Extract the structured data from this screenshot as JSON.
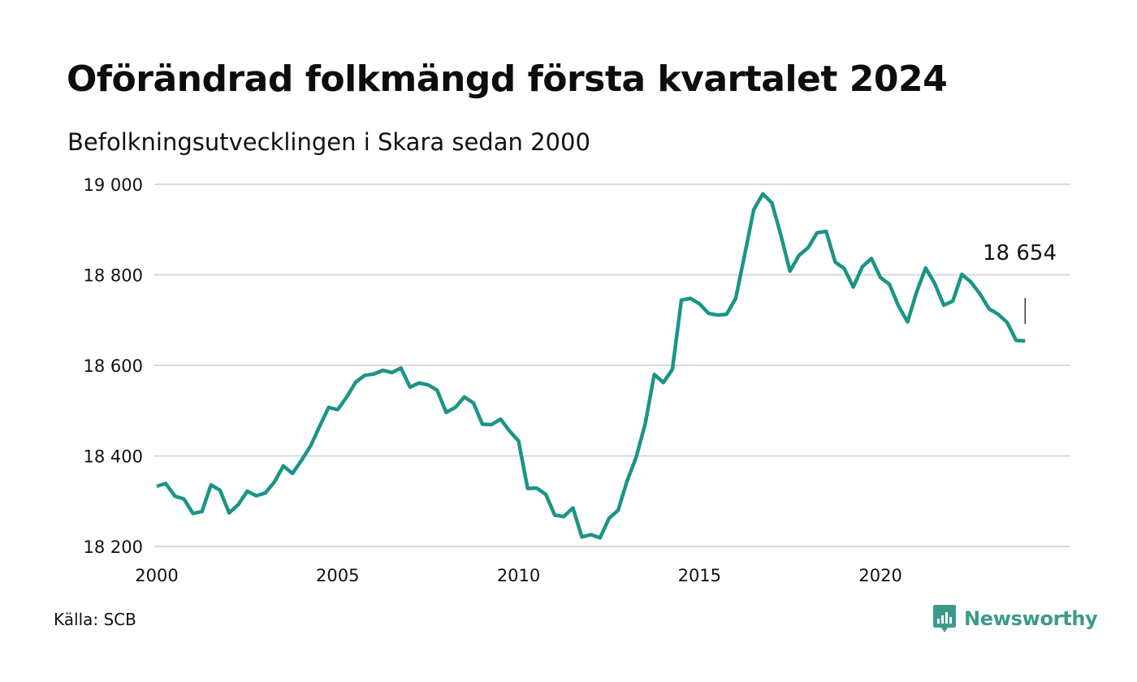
{
  "title": "Oförändrad folkmängd första kvartalet 2024",
  "subtitle": "Befolkningsutvecklingen i Skara sedan 2000",
  "source": "Källa: SCB",
  "brand": {
    "name": "Newsworthy",
    "logo_icon": "newsworthy-bar-chart-icon"
  },
  "colors": {
    "line": "#1a9585",
    "grid": "#d9d9de",
    "text": "#111111",
    "brand": "#3d9a8b"
  },
  "chart_data": {
    "type": "line",
    "title": "Befolkningsutvecklingen i Skara sedan 2000",
    "xlabel": "",
    "ylabel": "",
    "xlim": [
      2000,
      2025.25
    ],
    "ylim": [
      18200,
      19000
    ],
    "x_ticks": [
      2000,
      2005,
      2010,
      2015,
      2020
    ],
    "x_tick_labels": [
      "2000",
      "2005",
      "2010",
      "2015",
      "2020"
    ],
    "y_ticks": [
      18200,
      18400,
      18600,
      18800,
      19000
    ],
    "y_tick_labels": [
      "18 200",
      "18 400",
      "18 600",
      "18 800",
      "19 000"
    ],
    "grid": "horizontal",
    "legend": "none",
    "annotation": {
      "text": "18 654",
      "x": 2024.0,
      "y": 18654
    },
    "series": [
      {
        "x": [
          2000.0,
          2000.25,
          2000.5,
          2000.75,
          2001.0,
          2001.25,
          2001.5,
          2001.75,
          2002.0,
          2002.25,
          2002.5,
          2002.75,
          2003.0,
          2003.25,
          2003.5,
          2003.75,
          2004.0,
          2004.25,
          2004.5,
          2004.75,
          2005.0,
          2005.25,
          2005.5,
          2005.75,
          2006.0,
          2006.25,
          2006.5,
          2006.75,
          2007.0,
          2007.25,
          2007.5,
          2007.75,
          2008.0,
          2008.25,
          2008.5,
          2008.75,
          2009.0,
          2009.25,
          2009.5,
          2009.75,
          2010.0,
          2010.25,
          2010.5,
          2010.75,
          2011.0,
          2011.25,
          2011.5,
          2011.75,
          2012.0,
          2012.25,
          2012.5,
          2012.75,
          2013.0,
          2013.25,
          2013.5,
          2013.75,
          2014.0,
          2014.25,
          2014.5,
          2014.75,
          2015.0,
          2015.25,
          2015.5,
          2015.75,
          2016.0,
          2016.25,
          2016.5,
          2016.75,
          2017.0,
          2017.25,
          2017.5,
          2017.75,
          2018.0,
          2018.25,
          2018.5,
          2018.75,
          2019.0,
          2019.25,
          2019.5,
          2019.75,
          2020.0,
          2020.25,
          2020.5,
          2020.75,
          2021.0,
          2021.25,
          2021.5,
          2021.75,
          2022.0,
          2022.25,
          2022.5,
          2022.75,
          2023.0,
          2023.25,
          2023.5,
          2023.75,
          2024.0
        ],
        "values": [
          18333,
          18339,
          18311,
          18305,
          18273,
          18277,
          18336,
          18324,
          18274,
          18292,
          18322,
          18312,
          18318,
          18342,
          18378,
          18361,
          18390,
          18422,
          18465,
          18507,
          18502,
          18530,
          18563,
          18578,
          18581,
          18589,
          18584,
          18594,
          18552,
          18561,
          18557,
          18545,
          18496,
          18507,
          18530,
          18517,
          18470,
          18469,
          18481,
          18455,
          18433,
          18328,
          18329,
          18315,
          18269,
          18266,
          18285,
          18221,
          18226,
          18219,
          18262,
          18280,
          18345,
          18397,
          18471,
          18580,
          18562,
          18591,
          18744,
          18748,
          18736,
          18715,
          18711,
          18713,
          18748,
          18845,
          18944,
          18979,
          18959,
          18887,
          18808,
          18843,
          18860,
          18893,
          18896,
          18828,
          18814,
          18773,
          18818,
          18836,
          18794,
          18779,
          18731,
          18696,
          18762,
          18815,
          18781,
          18733,
          18742,
          18801,
          18784,
          18758,
          18725,
          18713,
          18695,
          18655,
          18654
        ]
      }
    ]
  }
}
